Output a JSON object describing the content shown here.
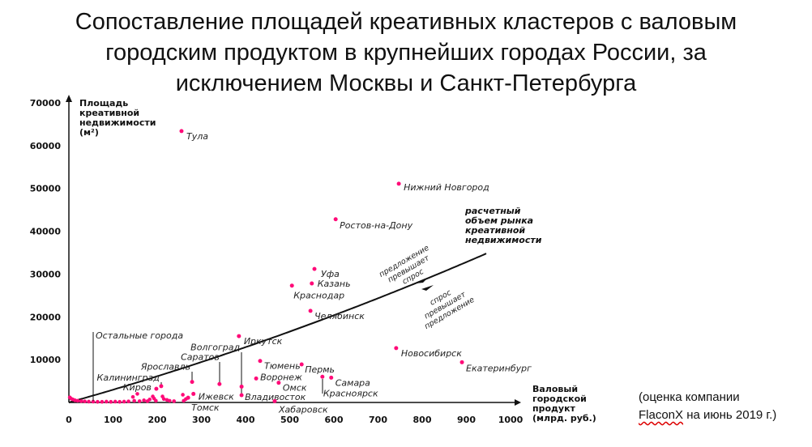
{
  "chart_data": {
    "type": "scatter",
    "title": "Сопоставление площадей креативных кластеров с валовым городским продуктом в крупнейших городах России, за исключением Москвы и Санкт-Петербурга",
    "title_lines": [
      "Сопоставление площадей креативных кластеров с валовым",
      "городским продуктом в крупнейших городах России, за",
      "исключением Москвы и Санкт-Петербурга"
    ],
    "ylabel_lines": [
      "Площадь",
      "креативной",
      "недвижимости",
      "(м²)"
    ],
    "xlabel_lines": [
      "Валовый",
      "городской",
      "продукт",
      "(млрд. руб.)"
    ],
    "xlim": [
      0,
      1000
    ],
    "ylim": [
      0,
      70000
    ],
    "xticks": [
      0,
      100,
      200,
      300,
      400,
      500,
      600,
      700,
      800,
      900,
      1000
    ],
    "yticks": [
      10000,
      20000,
      30000,
      40000,
      50000,
      60000,
      70000
    ],
    "point_color": "#ff0a78",
    "points": [
      {
        "name": "Тула",
        "x": 255,
        "y": 63400
      },
      {
        "name": "Нижний Новгород",
        "x": 747,
        "y": 51100
      },
      {
        "name": "Ростов-на-Дону",
        "x": 604,
        "y": 42800
      },
      {
        "name": "Уфа",
        "x": 556,
        "y": 31200
      },
      {
        "name": "Казань",
        "x": 550,
        "y": 27800
      },
      {
        "name": "Краснодар",
        "x": 505,
        "y": 27300
      },
      {
        "name": "Челябинск",
        "x": 547,
        "y": 21400
      },
      {
        "name": "Иркутск",
        "x": 385,
        "y": 15500
      },
      {
        "name": "Новосибирск",
        "x": 741,
        "y": 12700
      },
      {
        "name": "Екатеринбург",
        "x": 890,
        "y": 9400
      },
      {
        "name": "Тюмень",
        "x": 433,
        "y": 9700
      },
      {
        "name": "Пермь",
        "x": 527,
        "y": 8900
      },
      {
        "name": "Воронеж",
        "x": 424,
        "y": 5600
      },
      {
        "name": "Омск",
        "x": 475,
        "y": 4600
      },
      {
        "name": "Красноярск",
        "x": 574,
        "y": 6000
      },
      {
        "name": "Самара",
        "x": 594,
        "y": 5800
      },
      {
        "name": "Волгоград",
        "x": 391,
        "y": 3700
      },
      {
        "name": "Владивосток",
        "x": 391,
        "y": 1700
      },
      {
        "name": "Хабаровск",
        "x": 466,
        "y": 300
      },
      {
        "name": "Саратов",
        "x": 341,
        "y": 4300
      },
      {
        "name": "Ярославль",
        "x": 279,
        "y": 4800
      },
      {
        "name": "Калининград",
        "x": 209,
        "y": 3800
      },
      {
        "name": "Киров",
        "x": 198,
        "y": 3200
      },
      {
        "name": "Ижевск",
        "x": 282,
        "y": 2000
      },
      {
        "name": "Томск",
        "x": 270,
        "y": 1100
      }
    ],
    "other_cities_label": "Остальные города",
    "other_points": [
      {
        "x": 2,
        "y": 1200
      },
      {
        "x": 5,
        "y": 900
      },
      {
        "x": 9,
        "y": 700
      },
      {
        "x": 14,
        "y": 500
      },
      {
        "x": 20,
        "y": 400
      },
      {
        "x": 28,
        "y": 300
      },
      {
        "x": 36,
        "y": 250
      },
      {
        "x": 45,
        "y": 200
      },
      {
        "x": 55,
        "y": 200
      },
      {
        "x": 65,
        "y": 150
      },
      {
        "x": 75,
        "y": 150
      },
      {
        "x": 85,
        "y": 200
      },
      {
        "x": 95,
        "y": 150
      },
      {
        "x": 105,
        "y": 200
      },
      {
        "x": 115,
        "y": 150
      },
      {
        "x": 125,
        "y": 200
      },
      {
        "x": 135,
        "y": 250
      },
      {
        "x": 145,
        "y": 1300
      },
      {
        "x": 148,
        "y": 400
      },
      {
        "x": 155,
        "y": 2000
      },
      {
        "x": 160,
        "y": 300
      },
      {
        "x": 170,
        "y": 500
      },
      {
        "x": 178,
        "y": 300
      },
      {
        "x": 183,
        "y": 700
      },
      {
        "x": 190,
        "y": 1400
      },
      {
        "x": 193,
        "y": 900
      },
      {
        "x": 197,
        "y": 400
      },
      {
        "x": 212,
        "y": 1400
      },
      {
        "x": 215,
        "y": 800
      },
      {
        "x": 222,
        "y": 600
      },
      {
        "x": 228,
        "y": 400
      },
      {
        "x": 238,
        "y": 300
      },
      {
        "x": 258,
        "y": 1800
      },
      {
        "x": 260,
        "y": 400
      },
      {
        "x": 265,
        "y": 800
      }
    ],
    "curve": {
      "name": "расчетный объем рынка креативной недвижимости",
      "name_lines": [
        "расчетный",
        "объем рынка",
        "креативной",
        "недвижимости"
      ],
      "a": 0.00831,
      "b": 28.96,
      "x_range": [
        0,
        945
      ]
    },
    "annotations": {
      "above": [
        "предложение",
        "превышает",
        "спрос"
      ],
      "below": [
        "спрос",
        "превышает",
        "предложение"
      ]
    }
  },
  "note": {
    "line1": "(оценка компании",
    "brand": "FlaconX",
    "line2_rest": " на июнь 2019 г.)"
  }
}
